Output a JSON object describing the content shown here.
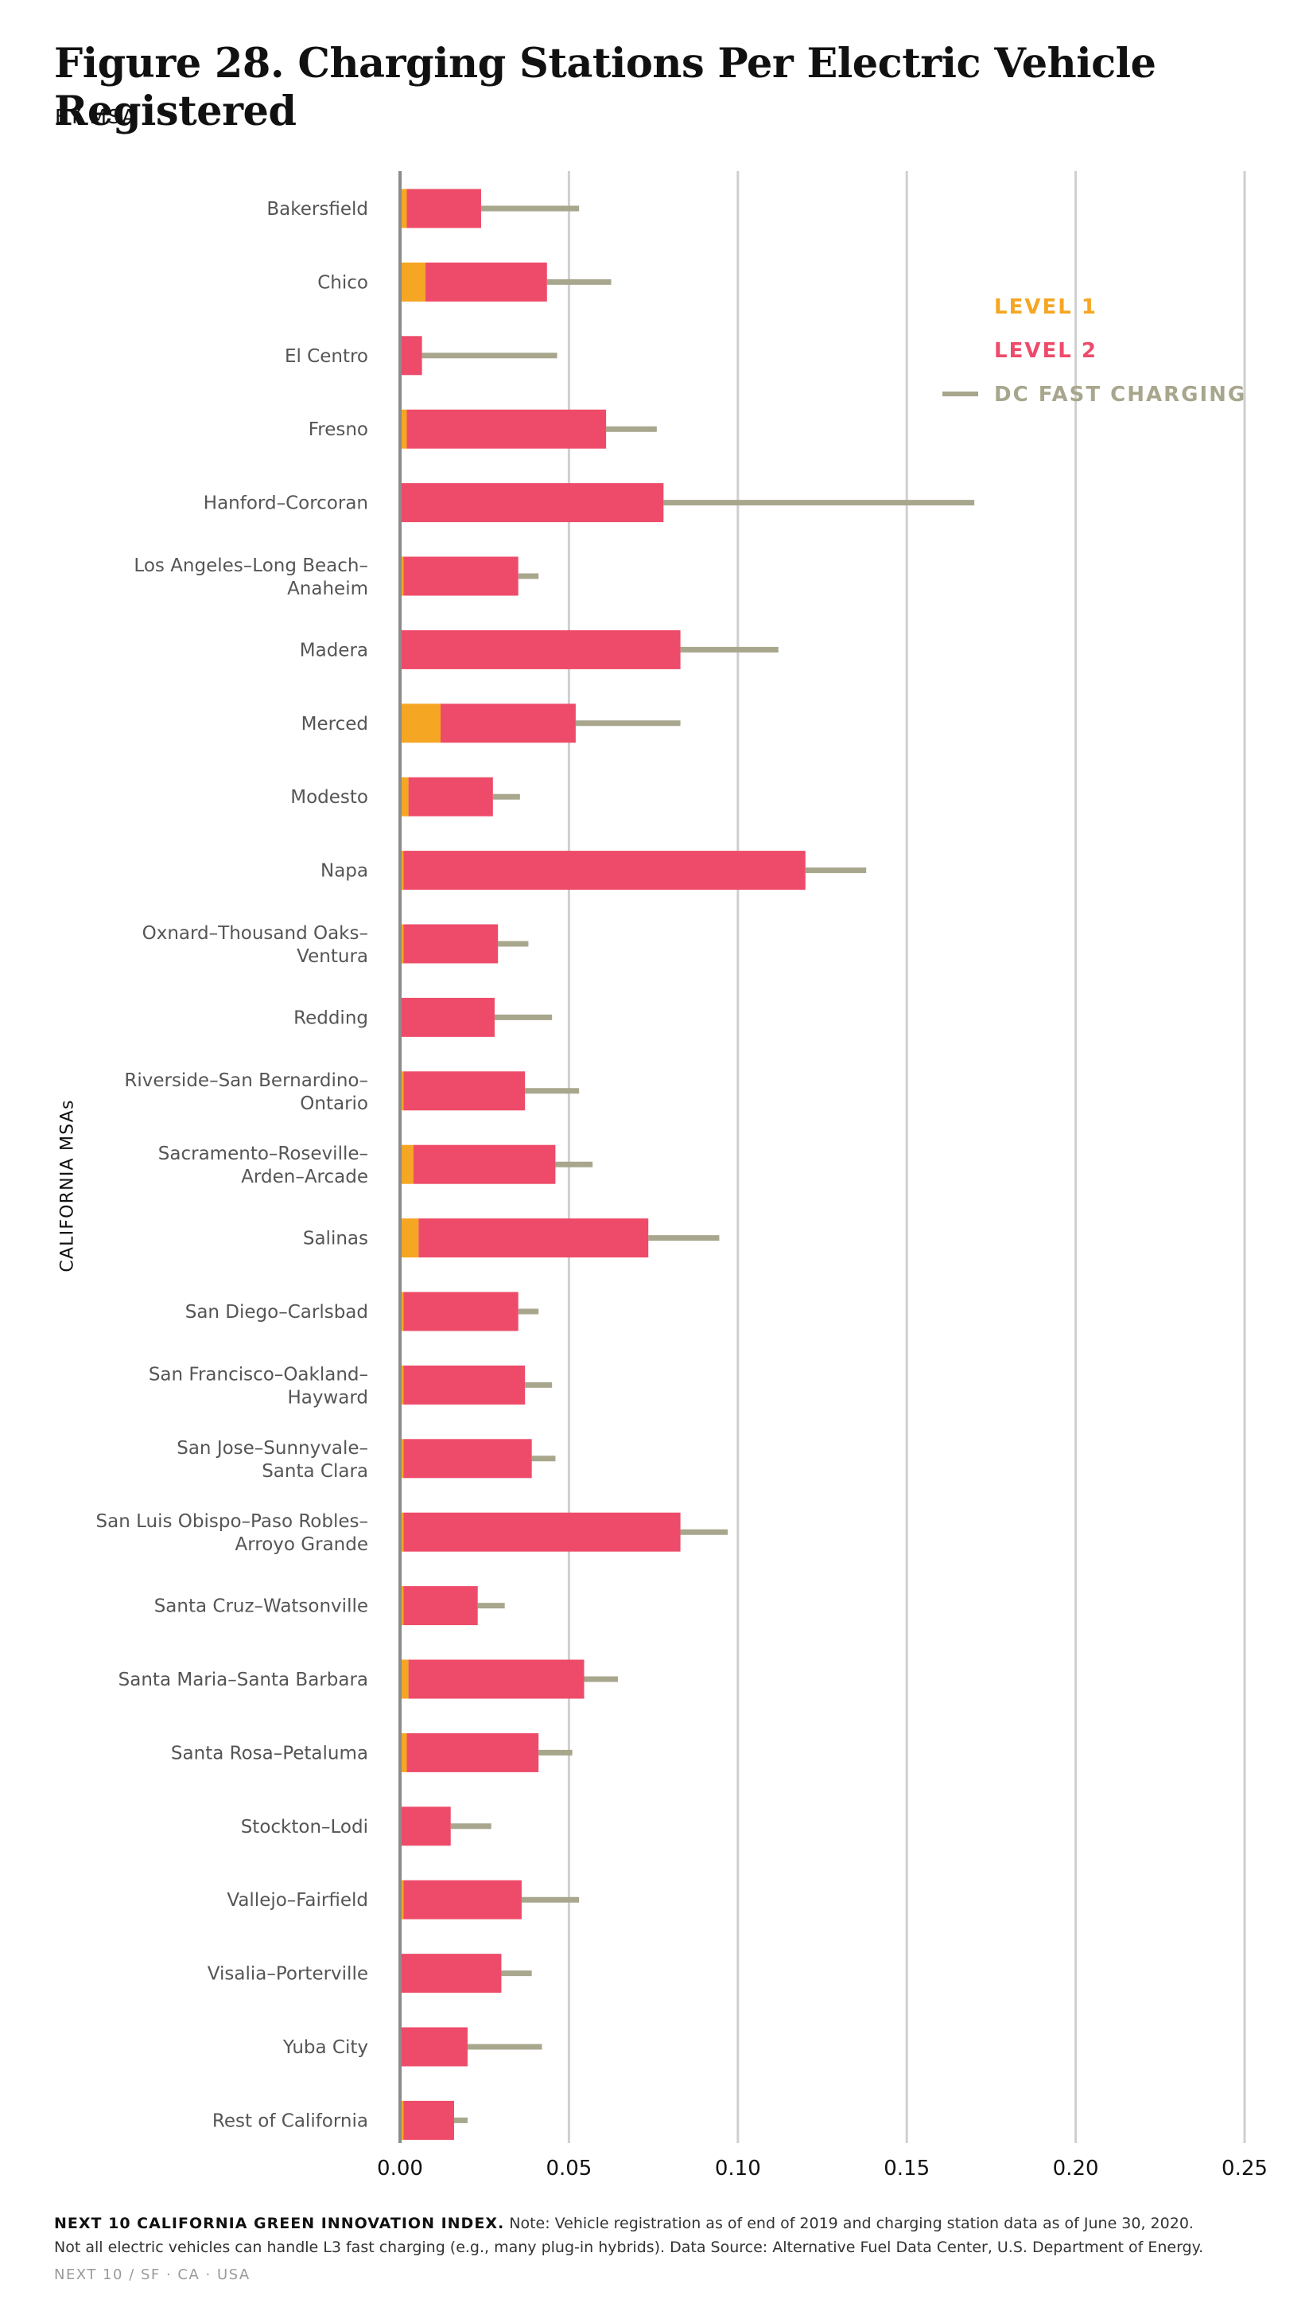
{
  "title": "Figure 28. Charging Stations Per Electric Vehicle Registered",
  "subtitle": "BY MSA",
  "footer": {
    "org": "NEXT 10 CALIFORNIA GREEN INNOVATION INDEX.",
    "note1": "Note: Vehicle registration as of end of 2019 and charging station data as of June 30, 2020.",
    "note2": "Not all electric vehicles can handle L3 fast charging (e.g., many plug-in hybrids). Data Source: Alternative Fuel Data Center, U.S. Department of Energy.",
    "brand": "NEXT 10  /  SF · CA · USA"
  },
  "colors": {
    "level1": "#f5a623",
    "level2": "#ee4b6a",
    "dc": "#a8a68c",
    "grid": "#cfcfcf",
    "axis": "#8c8c8c",
    "label": "#555555"
  },
  "chart_data": {
    "type": "bar",
    "orientation": "horizontal",
    "stacked": true,
    "ylabel": "CALIFORNIA MSAs",
    "xlabel": "",
    "xlim": [
      0,
      0.25
    ],
    "xticks": [
      "0.00",
      "0.05",
      "0.10",
      "0.15",
      "0.20",
      "0.25"
    ],
    "grid": true,
    "legend_position": "top-right",
    "legend": [
      "LEVEL 1",
      "LEVEL 2",
      "DC FAST CHARGING"
    ],
    "categories": [
      [
        "Bakersfield"
      ],
      [
        "Chico"
      ],
      [
        "El Centro"
      ],
      [
        "Fresno"
      ],
      [
        "Hanford–Corcoran"
      ],
      [
        "Los Angeles–Long Beach–",
        "Anaheim"
      ],
      [
        "Madera"
      ],
      [
        "Merced"
      ],
      [
        "Modesto"
      ],
      [
        "Napa"
      ],
      [
        "Oxnard–Thousand Oaks–",
        "Ventura"
      ],
      [
        "Redding"
      ],
      [
        "Riverside–San Bernardino–",
        "Ontario"
      ],
      [
        "Sacramento–Roseville–",
        "Arden–Arcade"
      ],
      [
        "Salinas"
      ],
      [
        "San Diego–Carlsbad"
      ],
      [
        "San Francisco–Oakland–",
        "Hayward"
      ],
      [
        "San Jose–Sunnyvale–",
        "Santa Clara"
      ],
      [
        "San Luis Obispo–Paso Robles–",
        "Arroyo Grande"
      ],
      [
        "Santa Cruz–Watsonville"
      ],
      [
        "Santa Maria–Santa Barbara"
      ],
      [
        "Santa Rosa–Petaluma"
      ],
      [
        "Stockton–Lodi"
      ],
      [
        "Vallejo–Fairfield"
      ],
      [
        "Visalia–Porterville"
      ],
      [
        "Yuba City"
      ],
      [
        "Rest of California"
      ]
    ],
    "series": [
      {
        "name": "LEVEL 1",
        "values": [
          0.002,
          0.0075,
          0.0,
          0.002,
          0.0,
          0.001,
          0.0,
          0.012,
          0.0025,
          0.001,
          0.001,
          0.0,
          0.001,
          0.004,
          0.0055,
          0.001,
          0.001,
          0.001,
          0.001,
          0.001,
          0.0025,
          0.002,
          0.0,
          0.001,
          0.0,
          0.0,
          0.001
        ]
      },
      {
        "name": "LEVEL 2",
        "values": [
          0.022,
          0.036,
          0.0065,
          0.059,
          0.078,
          0.034,
          0.083,
          0.04,
          0.025,
          0.119,
          0.028,
          0.028,
          0.036,
          0.042,
          0.068,
          0.034,
          0.036,
          0.038,
          0.082,
          0.022,
          0.052,
          0.039,
          0.015,
          0.035,
          0.03,
          0.02,
          0.015
        ]
      },
      {
        "name": "DC FAST CHARGING",
        "values": [
          0.029,
          0.019,
          0.04,
          0.015,
          0.092,
          0.006,
          0.029,
          0.031,
          0.008,
          0.018,
          0.009,
          0.017,
          0.016,
          0.011,
          0.021,
          0.006,
          0.008,
          0.007,
          0.014,
          0.008,
          0.01,
          0.01,
          0.012,
          0.017,
          0.009,
          0.022,
          0.004
        ]
      }
    ]
  }
}
